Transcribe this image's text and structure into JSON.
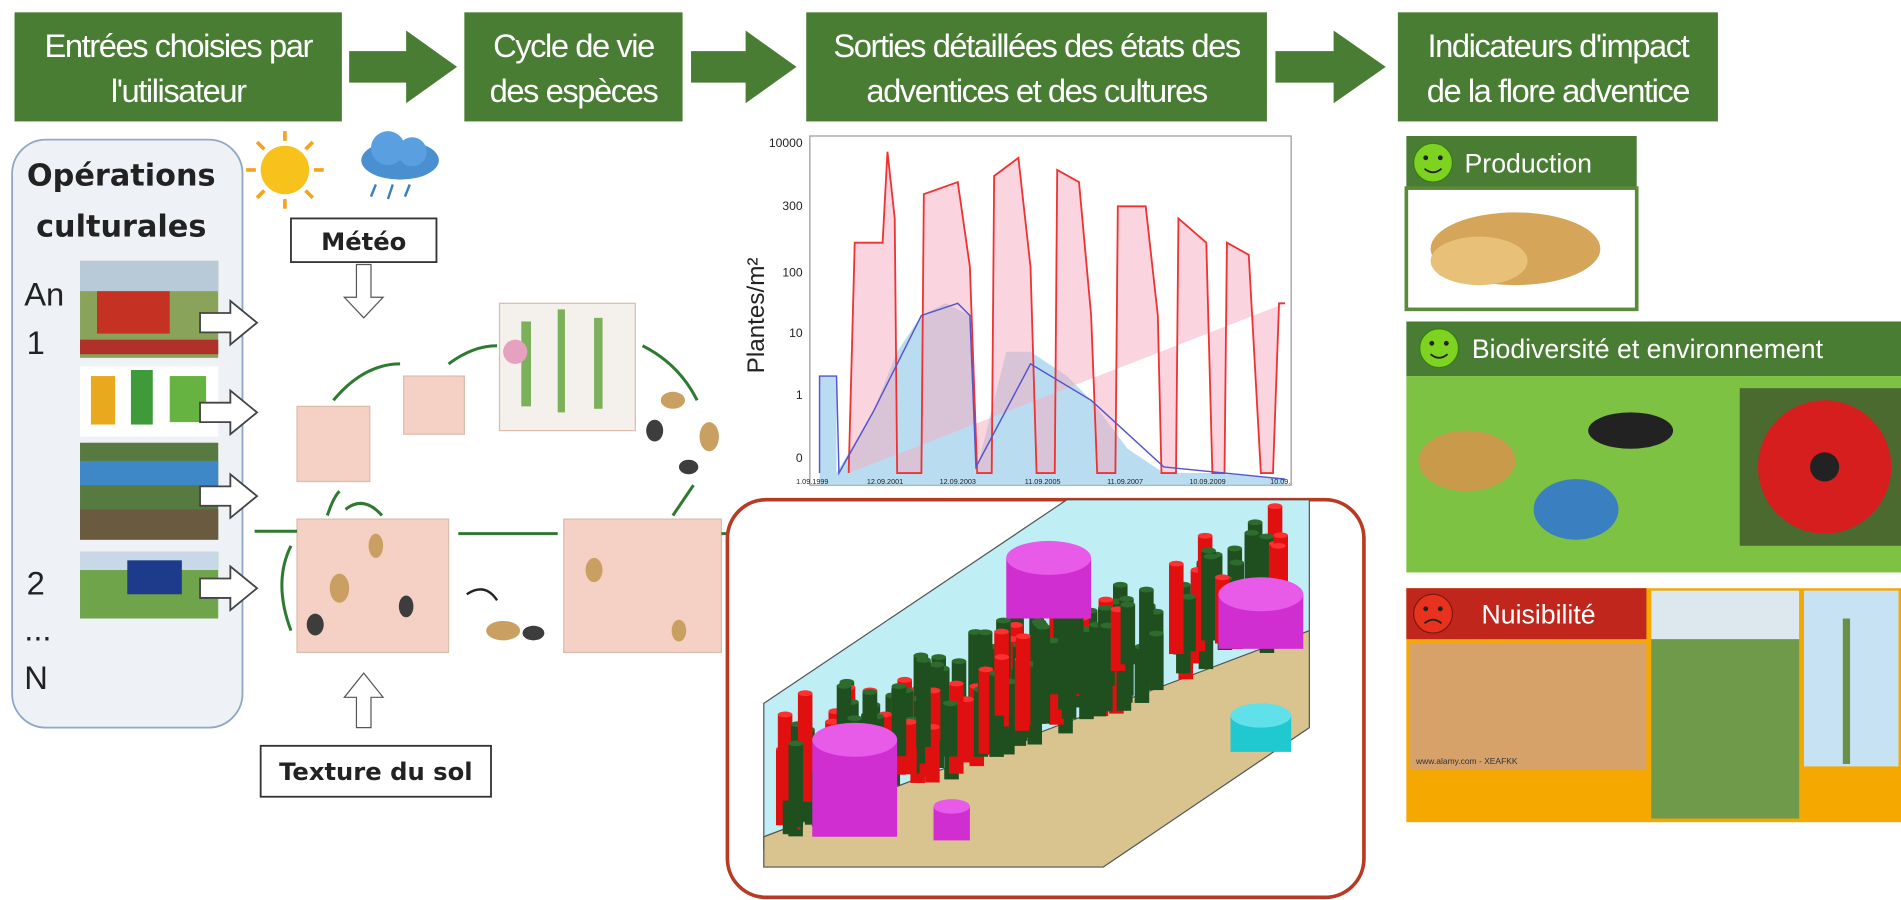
{
  "header": {
    "steps": [
      {
        "lines": [
          "Entrées choisies par",
          "l'utilisateur"
        ]
      },
      {
        "lines": [
          "Cycle de vie",
          "des espèces"
        ]
      },
      {
        "lines": [
          "Sorties détaillées des états des",
          "adventices et des cultures"
        ]
      },
      {
        "lines": [
          "Indicateurs d'impact",
          "de la flore adventice"
        ]
      }
    ]
  },
  "inputs": {
    "title_lines": [
      "Opérations",
      "culturales"
    ],
    "years": [
      "An",
      "1",
      "2",
      "...",
      "N"
    ],
    "weather": "Météo",
    "soil": "Texture du sol"
  },
  "outputs_chart": {
    "y_label": "Plantes/m²",
    "y_tick_labels": [
      "10000",
      "300",
      "100",
      "10",
      "1",
      "0"
    ],
    "x_tick_labels": [
      "1.09.1999",
      "12.09.2001",
      "12.09.2003",
      "11.09.2005",
      "11.09.2007",
      "10.09.2009",
      "10.09."
    ]
  },
  "indicators": {
    "production": "Production",
    "biodiversity": "Biodiversité et environnement",
    "harmfulness": "Nuisibilité",
    "watermark": "www.alamy.com - XEAFKK"
  }
}
